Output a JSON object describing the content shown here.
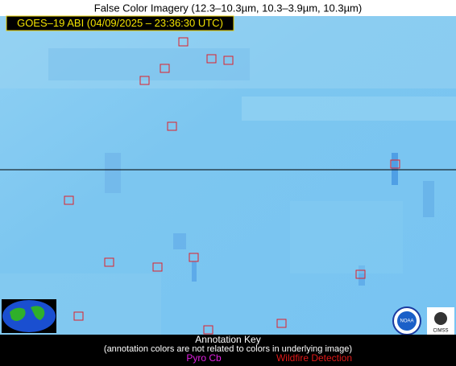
{
  "header": {
    "title": "False Color Imagery (12.3–10.3µm, 10.3–3.9µm, 10.3µm)"
  },
  "image": {
    "label": "GOES–19 ABI (04/09/2025 – 23:36:30 UTC)"
  },
  "annotation_key": {
    "title": "Annotation Key",
    "note": "(annotation colors are not related to colors in underlying image)",
    "items": [
      "Pyro Cb",
      "Wildfire Detection"
    ]
  },
  "logos": {
    "noaa": "NOAA",
    "cimss": "CIMSS"
  }
}
